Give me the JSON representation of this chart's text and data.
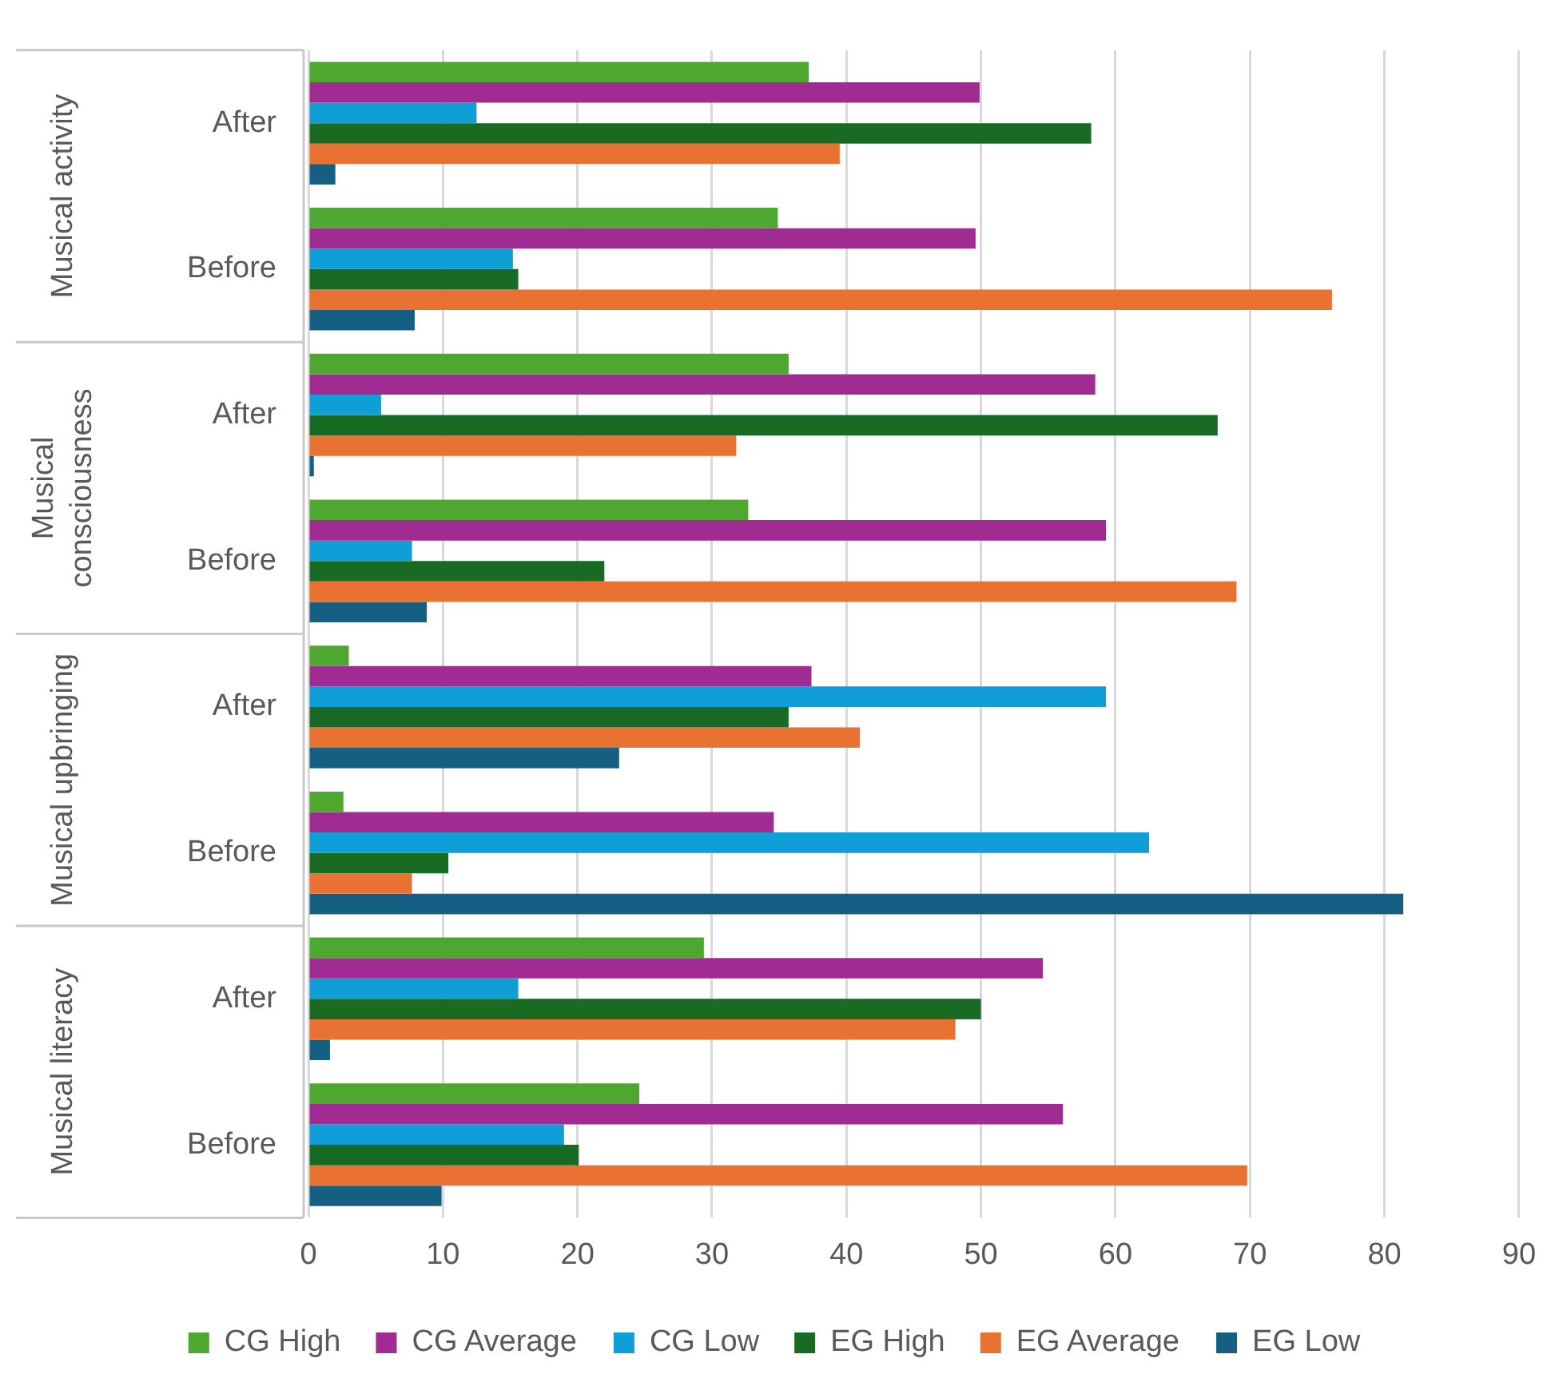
{
  "chart_data": {
    "type": "bar",
    "orientation": "horizontal",
    "categories": [
      "After",
      "Before",
      "After",
      "Before",
      "After",
      "Before",
      "After",
      "Before"
    ],
    "annotations": [
      "Musical activity",
      "Musical consciousness",
      "Musical upbringing",
      "Musical literacy"
    ],
    "series": [
      {
        "name": "CG High",
        "color": "#4ea72e",
        "values": [
          37.2,
          34.9,
          35.7,
          32.7,
          3.0,
          2.6,
          29.4,
          24.6
        ]
      },
      {
        "name": "CG Average",
        "color": "#a02b93",
        "values": [
          49.9,
          49.6,
          58.5,
          59.3,
          37.4,
          34.6,
          54.6,
          56.1
        ]
      },
      {
        "name": "CG Low",
        "color": "#0f9ed5",
        "values": [
          12.5,
          15.2,
          5.4,
          7.7,
          59.3,
          62.5,
          15.6,
          19.0
        ]
      },
      {
        "name": "EG High",
        "color": "#196b24",
        "values": [
          58.2,
          15.6,
          67.6,
          22.0,
          35.7,
          10.4,
          50.0,
          20.1
        ]
      },
      {
        "name": "EG Average",
        "color": "#e97132",
        "values": [
          39.5,
          76.1,
          31.8,
          69.0,
          41.0,
          7.7,
          48.1,
          69.8
        ]
      },
      {
        "name": "EG Low",
        "color": "#156082",
        "values": [
          2.0,
          7.9,
          0.4,
          8.8,
          23.1,
          81.4,
          1.6,
          9.9
        ]
      }
    ],
    "xlim": [
      0,
      90
    ],
    "xticks": [
      0,
      10,
      20,
      30,
      40,
      50,
      60,
      70,
      80,
      90
    ],
    "grid": "x",
    "legend": "bottom"
  }
}
